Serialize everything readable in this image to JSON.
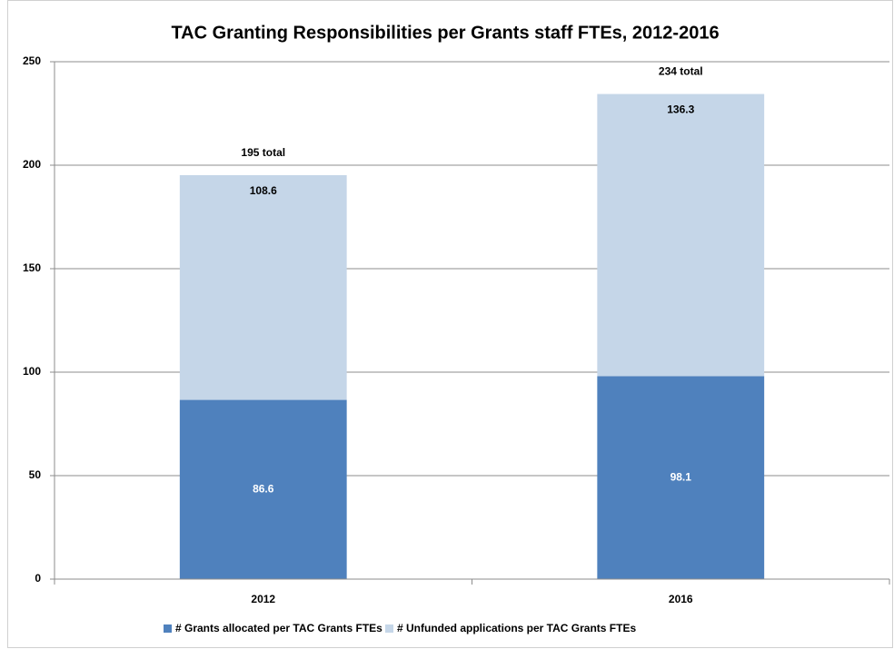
{
  "chart_data": {
    "type": "stacked_bar",
    "title": "TAC Granting Responsibilities per Grants staff FTEs, 2012-2016",
    "categories": [
      "2012",
      "2016"
    ],
    "series": [
      {
        "name": "# Grants allocated per TAC Grants FTEs",
        "color": "#4f81bd",
        "label_color": "#ffffff",
        "values": [
          86.6,
          98.1
        ]
      },
      {
        "name": "# Unfunded applications per TAC Grants FTEs",
        "color": "#c5d6e8",
        "label_color": "#000000",
        "values": [
          108.6,
          136.3
        ]
      }
    ],
    "annotations": [
      "195 total",
      "234 total"
    ],
    "ylim": [
      0,
      250
    ],
    "yticks": [
      0,
      50,
      100,
      150,
      200,
      250
    ],
    "grid": true,
    "legend": "bottom"
  }
}
